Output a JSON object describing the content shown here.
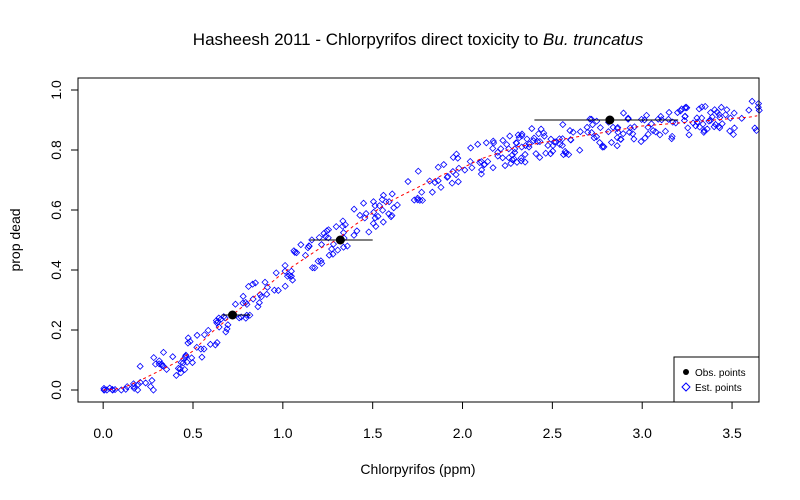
{
  "chart_data": {
    "type": "scatter",
    "title_main": "Hasheesh 2011 - Chlorpyrifos direct toxicity to ",
    "title_italic": "Bu. truncatus",
    "xlabel": "Chlorpyrifos (ppm)",
    "ylabel": "prop dead",
    "xlim": [
      -0.14,
      3.65
    ],
    "ylim": [
      -0.04,
      1.04
    ],
    "x_ticks": [
      0,
      0.5,
      1,
      1.5,
      2,
      2.5,
      3,
      3.5
    ],
    "x_tick_labels": [
      "0.0",
      "0.5",
      "1.0",
      "1.5",
      "2.0",
      "2.5",
      "3.0",
      "3.5"
    ],
    "y_ticks": [
      0,
      0.2,
      0.4,
      0.6,
      0.8,
      1
    ],
    "y_tick_labels": [
      "0.0",
      "0.2",
      "0.4",
      "0.6",
      "0.8",
      "1.0"
    ],
    "observed": [
      {
        "x": 0.72,
        "y": 0.25,
        "xmin": 0.66,
        "xmax": 0.82
      },
      {
        "x": 1.32,
        "y": 0.5,
        "xmin": 1.15,
        "xmax": 1.5
      },
      {
        "x": 2.82,
        "y": 0.9,
        "xmin": 2.4,
        "xmax": 3.2
      }
    ],
    "fit_curve": {
      "color": "#ff0000",
      "x": [
        0,
        0.1,
        0.2,
        0.3,
        0.4,
        0.5,
        0.6,
        0.7,
        0.8,
        0.9,
        1.0,
        1.1,
        1.2,
        1.3,
        1.4,
        1.5,
        1.6,
        1.7,
        1.8,
        1.9,
        2.0,
        2.1,
        2.2,
        2.3,
        2.4,
        2.5,
        2.6,
        2.7,
        2.8,
        2.9,
        3.0,
        3.1,
        3.2,
        3.3,
        3.4,
        3.5,
        3.6,
        3.65
      ],
      "y": [
        0,
        0.005,
        0.03,
        0.06,
        0.09,
        0.13,
        0.19,
        0.24,
        0.29,
        0.34,
        0.39,
        0.43,
        0.47,
        0.5,
        0.55,
        0.59,
        0.63,
        0.66,
        0.69,
        0.72,
        0.74,
        0.77,
        0.79,
        0.81,
        0.82,
        0.83,
        0.84,
        0.85,
        0.86,
        0.87,
        0.88,
        0.885,
        0.89,
        0.895,
        0.9,
        0.905,
        0.91,
        0.915
      ]
    },
    "estimated_generator": {
      "n": 380,
      "color": "#0000ff"
    },
    "legend": {
      "position": "bottom-right",
      "items": [
        {
          "label": "Obs. points",
          "marker": "filled-circle",
          "color": "#000000"
        },
        {
          "label": "Est. points",
          "marker": "open-diamond",
          "color": "#0000ff"
        }
      ]
    },
    "grid": false
  }
}
